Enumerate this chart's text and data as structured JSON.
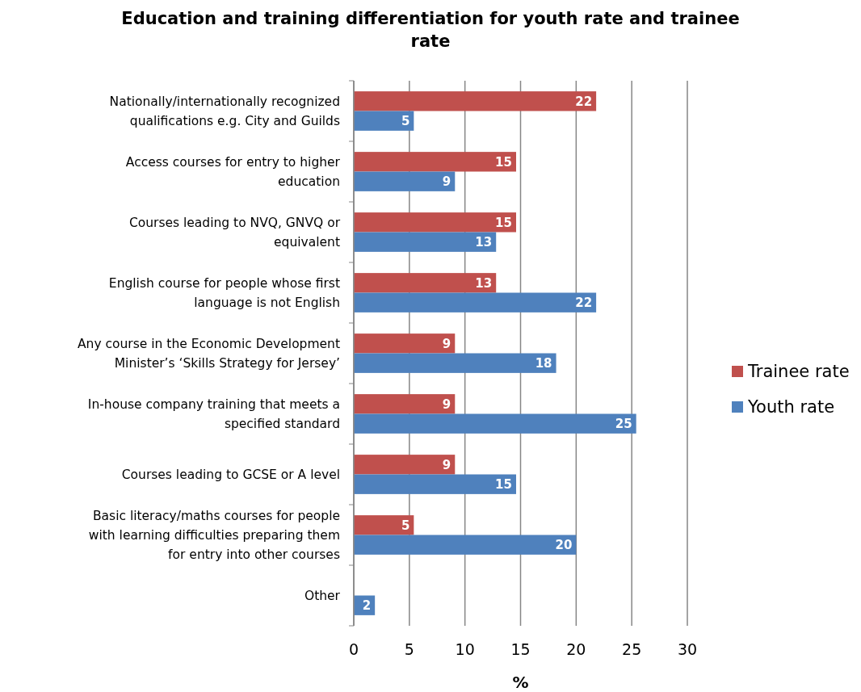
{
  "chart_data": {
    "type": "bar",
    "orientation": "horizontal",
    "title": "Education and training differentiation for youth rate and trainee rate",
    "xlabel": "%",
    "categories": [
      "Nationally/internationally recognized qualifications e.g. City and Guilds",
      "Access courses for entry to higher education",
      "Courses leading to NVQ, GNVQ or equivalent",
      "English course for people whose first language is not English",
      "Any course in the Economic Development Minister’s ‘Skills Strategy for Jersey’",
      "In-house company training that meets a specified standard",
      "Courses leading to GCSE or A level",
      "Basic literacy/maths courses for people with learning difficulties preparing them for entry into other courses",
      "Other"
    ],
    "series": [
      {
        "name": "Trainee rate",
        "color": "#c0504d",
        "values": [
          21.8,
          14.6,
          14.6,
          12.8,
          9.1,
          9.1,
          9.1,
          5.4,
          null
        ],
        "value_labels": [
          "22",
          "15",
          "15",
          "13",
          "9",
          "9",
          "9",
          "5",
          null
        ]
      },
      {
        "name": "Youth rate",
        "color": "#4f81bd",
        "values": [
          5.4,
          9.1,
          12.8,
          21.8,
          18.2,
          25.4,
          14.6,
          20.0,
          1.9
        ],
        "value_labels": [
          "5",
          "9",
          "13",
          "22",
          "18",
          "25",
          "15",
          "20",
          "2"
        ]
      }
    ],
    "xlim": [
      0,
      30
    ],
    "xticks": [
      0,
      5,
      10,
      15,
      20,
      25,
      30
    ],
    "grid": "x",
    "legend": "right"
  }
}
